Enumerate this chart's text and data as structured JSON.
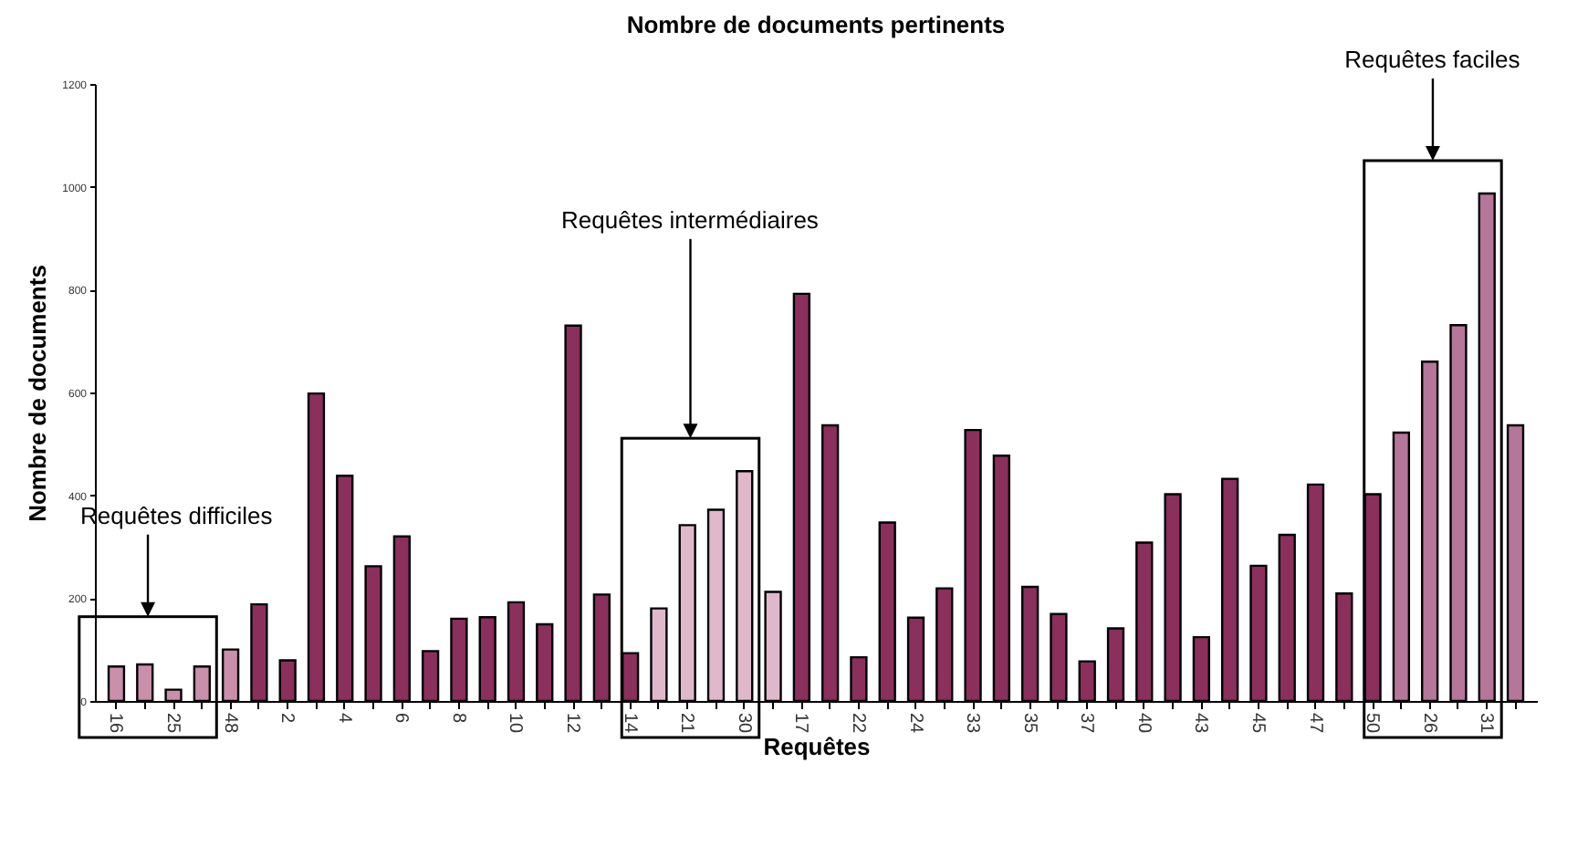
{
  "chart_data": {
    "type": "bar",
    "title": "Nombre de documents pertinents",
    "xlabel": "Requêtes",
    "ylabel": "Nombre de documents",
    "categories": [
      "16",
      null,
      "25",
      null,
      "48",
      null,
      "2",
      null,
      "4",
      null,
      "6",
      null,
      "8",
      null,
      "10",
      null,
      "12",
      null,
      "14",
      null,
      "21",
      null,
      "30",
      null,
      "17",
      null,
      "22",
      null,
      "24",
      null,
      "33",
      null,
      "35",
      null,
      "37",
      null,
      "40",
      null,
      "43",
      null,
      "45",
      null,
      "47",
      null,
      "50",
      null,
      "26",
      null,
      "31",
      null
    ],
    "values": [
      67,
      71,
      22,
      67,
      100,
      188,
      79,
      598,
      438,
      262,
      320,
      97,
      160,
      163,
      192,
      149,
      730,
      207,
      93,
      180,
      342,
      372,
      447,
      212,
      792,
      536,
      85,
      347,
      162,
      219,
      527,
      477,
      222,
      169,
      77,
      141,
      308,
      402,
      124,
      432,
      263,
      323,
      421,
      209,
      402,
      522,
      660,
      731,
      987,
      536
    ],
    "colors": [
      "#c98fab",
      "#c98fab",
      "#c98fab",
      "#c98fab",
      "#c98fab",
      "#8b2f5c",
      "#8b2f5c",
      "#8b2f5c",
      "#8b2f5c",
      "#8b2f5c",
      "#8b2f5c",
      "#8b2f5c",
      "#8b2f5c",
      "#8b2f5c",
      "#8b2f5c",
      "#8b2f5c",
      "#8b2f5c",
      "#8b2f5c",
      "#8b2f5c",
      "#e0b8cc",
      "#e0b8cc",
      "#e0b8cc",
      "#e0b8cc",
      "#e0b8cc",
      "#8b2f5c",
      "#8b2f5c",
      "#8b2f5c",
      "#8b2f5c",
      "#8b2f5c",
      "#8b2f5c",
      "#8b2f5c",
      "#8b2f5c",
      "#8b2f5c",
      "#8b2f5c",
      "#8b2f5c",
      "#8b2f5c",
      "#8b2f5c",
      "#8b2f5c",
      "#8b2f5c",
      "#8b2f5c",
      "#8b2f5c",
      "#8b2f5c",
      "#8b2f5c",
      "#8b2f5c",
      "#8b2f5c",
      "#b5769a",
      "#b5769a",
      "#b5769a",
      "#b5769a",
      "#b5769a"
    ],
    "ylim": [
      0,
      1200
    ],
    "yticks": [
      0,
      200,
      400,
      600,
      800,
      1000,
      1200
    ],
    "grid": false,
    "annotations": [
      "Requêtes difficiles",
      "Requêtes intermédiaires",
      "Requêtes faciles"
    ]
  }
}
